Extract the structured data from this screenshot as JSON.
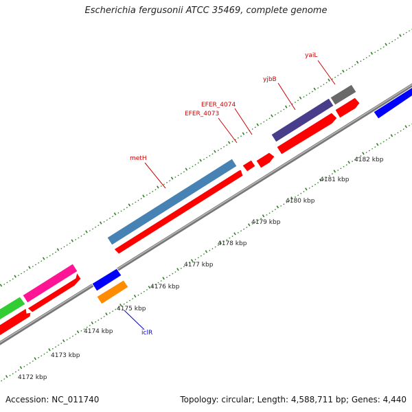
{
  "title": "Escherichia fergusonii ATCC 35469, complete genome",
  "footer": {
    "accession": "Accession: NC_011740",
    "summary": "Topology: circular; Length: 4,588,711 bp; Genes: 4,440"
  },
  "scale_labels": [
    "4172 kbp",
    "4173 kbp",
    "4174 kbp",
    "4175 kbp",
    "4176 kbp",
    "4177 kbp",
    "4178 kbp",
    "4179 kbp",
    "4180 kbp",
    "4181 kbp",
    "4182 kbp"
  ],
  "gene_labels": {
    "metH": "metH",
    "efer4073": "EFER_4073",
    "efer4074": "EFER_4074",
    "yjbB": "yjbB",
    "yaiL": "yaiL",
    "iclR": "iclR"
  },
  "colors": {
    "cds_red": "#ff0000",
    "metH_blue": "#4682b4",
    "yjbB_purple": "#483d8b",
    "yaiL_gray": "#696969",
    "pink": "#ff1493",
    "green": "#32cd32",
    "blue": "#0000ff",
    "orange": "#ff8c00",
    "backbone": "#808080",
    "tick_green": "#2e7d22",
    "label_red": "#cc0000",
    "label_blue": "#0000cc"
  }
}
